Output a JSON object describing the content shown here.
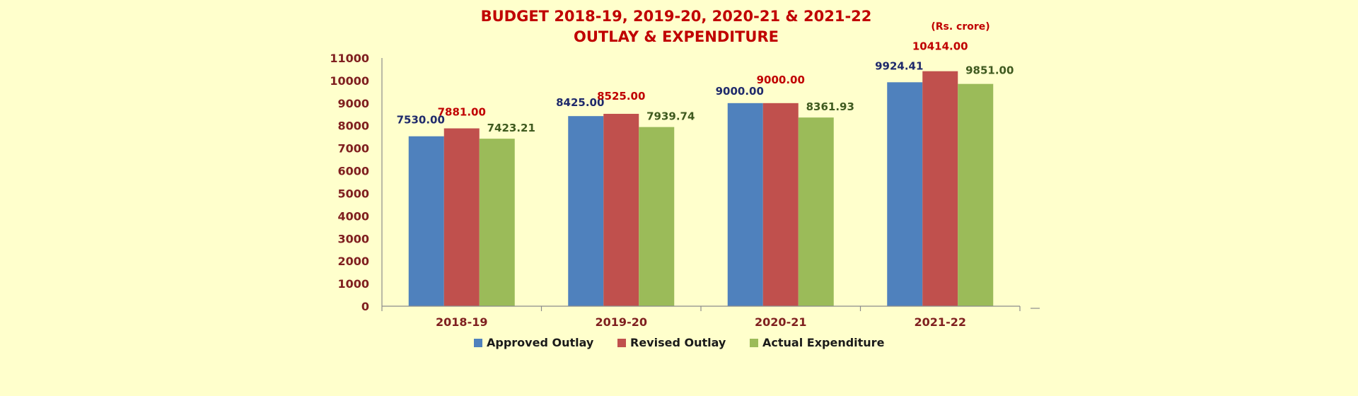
{
  "chart_data": {
    "type": "bar",
    "title": [
      "BUDGET 2018-19, 2019-20, 2020-21 & 2021-22",
      "OUTLAY & EXPENDITURE"
    ],
    "unit_note": "(Rs. crore)",
    "categories": [
      "2018-19",
      "2019-20",
      "2020-21",
      "2021-22"
    ],
    "series": [
      {
        "name": "Approved Outlay",
        "color": "#4f81bd",
        "label_color": "#1f2a6b",
        "values": [
          7530.0,
          8425.0,
          9000.0,
          9924.41
        ],
        "labels": [
          "7530.00",
          "8425.00",
          "9000.00",
          "9924.41"
        ]
      },
      {
        "name": "Revised Outlay",
        "color": "#c0504d",
        "label_color": "#c00000",
        "values": [
          7881.0,
          8525.0,
          9000.0,
          10414.0
        ],
        "labels": [
          "7881.00",
          "8525.00",
          "9000.00",
          "10414.00"
        ]
      },
      {
        "name": "Actual Expenditure",
        "color": "#9bbb59",
        "label_color": "#3f5a1f",
        "values": [
          7423.21,
          7939.74,
          8361.93,
          9851.0
        ],
        "labels": [
          "7423.21",
          "7939.74",
          "8361.93",
          "9851.00"
        ]
      }
    ],
    "ylim": [
      0,
      11000
    ],
    "yticks": [
      "0",
      "1000",
      "2000",
      "3000",
      "4000",
      "5000",
      "6000",
      "7000",
      "8000",
      "9000",
      "10000",
      "11000"
    ],
    "grid": false,
    "legend_position": "bottom"
  }
}
